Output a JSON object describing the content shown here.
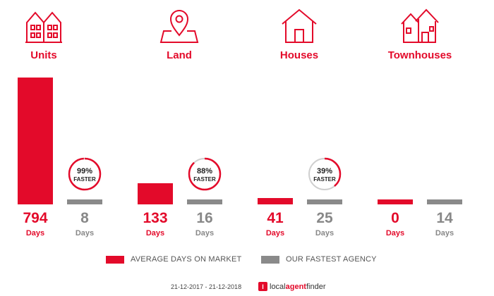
{
  "colors": {
    "primary": "#e30a2a",
    "secondary": "#8a8a8a",
    "primary_text": "#e30a2a",
    "secondary_text": "#888888",
    "ring_track": "#cfcfcf"
  },
  "categories": [
    {
      "label": "Units",
      "icon": "apartment-building-icon"
    },
    {
      "label": "Land",
      "icon": "map-pin-icon"
    },
    {
      "label": "Houses",
      "icon": "house-icon"
    },
    {
      "label": "Townhouses",
      "icon": "townhouses-icon"
    }
  ],
  "chart_data": {
    "type": "bar",
    "categories": [
      "Units",
      "Land",
      "Houses",
      "Townhouses"
    ],
    "series": [
      {
        "name": "AVERAGE DAYS ON MARKET",
        "values": [
          794,
          133,
          41,
          0
        ]
      },
      {
        "name": "OUR FASTEST AGENCY",
        "values": [
          8,
          16,
          25,
          14
        ]
      }
    ],
    "unit_label": "Days",
    "faster": [
      {
        "percent": 99,
        "label": "99%",
        "text": "FASTER"
      },
      {
        "percent": 88,
        "label": "88%",
        "text": "FASTER"
      },
      {
        "percent": 39,
        "label": "39%",
        "text": "FASTER"
      },
      null
    ],
    "legend_position": "bottom"
  },
  "legend": {
    "primary_label": "AVERAGE DAYS ON MARKET",
    "secondary_label": "OUR FASTEST AGENCY"
  },
  "footer": {
    "date_range": "21-12-2017 - 21-12-2018",
    "brand_logo_char": "l",
    "brand_prefix": "local",
    "brand_middle": "agent",
    "brand_suffix": "finder"
  }
}
